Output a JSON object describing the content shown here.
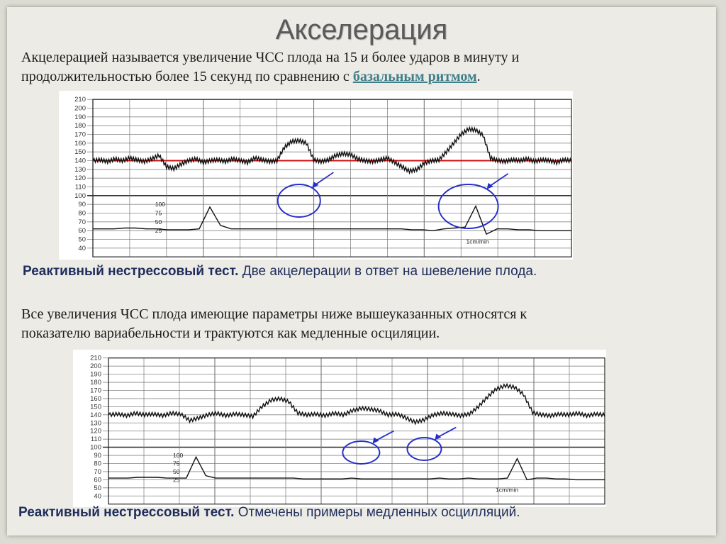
{
  "title": "Акселерация",
  "definition": {
    "line1": "Акцелерацией называется увеличение ЧСС плода на 15 и более ударов в минуту и",
    "line2_prefix": "продолжительностью более 15 секунд по сравнению с ",
    "line2_link": "базальным ритмом",
    "line2_suffix": "."
  },
  "caption1": {
    "bold": "Реактивный нестрессовый тест.",
    "text": " Две акцелерации в ответ на шевеление плода."
  },
  "note": {
    "line1": "Все увеличения ЧСС плода имеющие параметры ниже вышеуказанных относятся к",
    "line2": "показателю вариабельности и трактуются как медленные осциляции."
  },
  "caption2": {
    "bold": "Реактивный нестрессовый тест.",
    "text": " Отмечены примеры медленных осцилляций."
  },
  "chart_data": [
    {
      "type": "line",
      "y_ticks": [
        210,
        200,
        190,
        180,
        170,
        160,
        150,
        140,
        130,
        120,
        110,
        100,
        90,
        80,
        70,
        60,
        50,
        40
      ],
      "toco_labels": [
        "100",
        "75",
        "50",
        "25"
      ],
      "speed_label": "1cm/min",
      "baseline": 140,
      "series": [
        {
          "values": [
            140,
            141,
            139,
            142,
            140,
            143,
            141,
            139,
            142,
            146,
            133,
            131,
            136,
            140,
            142,
            138,
            140,
            141,
            139,
            142,
            140,
            138,
            143,
            141,
            139,
            140,
            155,
            162,
            163,
            160,
            141,
            139,
            141,
            146,
            148,
            147,
            142,
            140,
            139,
            141,
            143,
            138,
            133,
            128,
            130,
            137,
            140,
            141,
            150,
            160,
            170,
            176,
            175,
            169,
            143,
            140,
            139,
            141,
            140,
            142,
            139,
            141,
            140,
            138,
            141,
            140
          ]
        },
        {
          "values": [
            62,
            62,
            62,
            63,
            63,
            62,
            62,
            61,
            61,
            61,
            62,
            87,
            66,
            62,
            62,
            62,
            62,
            62,
            62,
            62,
            62,
            62,
            62,
            62,
            62,
            62,
            62,
            62,
            62,
            62,
            61,
            61,
            60,
            62,
            63,
            64,
            88,
            56,
            62,
            62,
            61,
            61,
            60,
            60,
            60,
            60
          ]
        }
      ],
      "circles": 2,
      "arrows": 2,
      "ylim": [
        40,
        210
      ]
    },
    {
      "type": "line",
      "y_ticks": [
        210,
        200,
        190,
        180,
        170,
        160,
        150,
        140,
        130,
        120,
        110,
        100,
        90,
        80,
        70,
        60,
        50,
        40
      ],
      "toco_labels": [
        "100",
        "75",
        "50",
        "25"
      ],
      "speed_label": "1cm/min",
      "series": [
        {
          "values": [
            140,
            141,
            139,
            142,
            140,
            141,
            139,
            142,
            141,
            133,
            136,
            140,
            142,
            139,
            141,
            140,
            138,
            150,
            158,
            160,
            156,
            142,
            140,
            141,
            139,
            142,
            140,
            145,
            148,
            147,
            145,
            140,
            141,
            136,
            131,
            134,
            140,
            142,
            141,
            139,
            141,
            150,
            162,
            172,
            176,
            174,
            165,
            143,
            140,
            139,
            141,
            140,
            142,
            139,
            141,
            140
          ]
        },
        {
          "values": [
            62,
            62,
            62,
            63,
            63,
            63,
            62,
            62,
            62,
            88,
            65,
            62,
            62,
            62,
            62,
            62,
            62,
            62,
            62,
            62,
            61,
            61,
            61,
            61,
            61,
            62,
            61,
            61,
            61,
            61,
            61,
            61,
            61,
            61,
            62,
            61,
            61,
            62,
            61,
            61,
            61,
            62,
            86,
            60,
            62,
            62,
            61,
            61,
            60,
            60,
            60,
            60
          ]
        }
      ],
      "circles": 2,
      "arrows": 2,
      "ylim": [
        40,
        210
      ]
    }
  ]
}
